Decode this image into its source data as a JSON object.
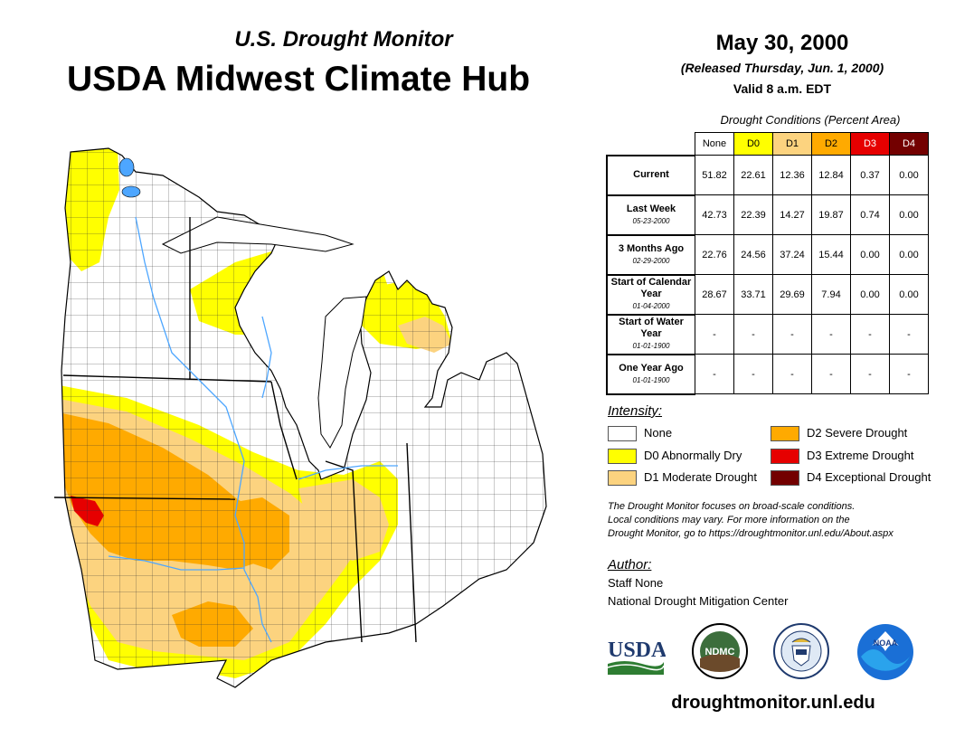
{
  "header": {
    "subtitle": "U.S. Drought Monitor",
    "title": "USDA Midwest Climate Hub",
    "date": "May 30, 2000",
    "released": "(Released Thursday, Jun. 1, 2000)",
    "valid": "Valid 8 a.m. EDT"
  },
  "conditions": {
    "caption": "Drought Conditions (Percent Area)",
    "columns": [
      {
        "label": "None",
        "color": "#ffffff",
        "text_color": "#000000"
      },
      {
        "label": "D0",
        "color": "#ffff00",
        "text_color": "#000000"
      },
      {
        "label": "D1",
        "color": "#fcd37f",
        "text_color": "#000000"
      },
      {
        "label": "D2",
        "color": "#ffaa00",
        "text_color": "#000000"
      },
      {
        "label": "D3",
        "color": "#e60000",
        "text_color": "#ffffff"
      },
      {
        "label": "D4",
        "color": "#730000",
        "text_color": "#ffffff"
      }
    ],
    "rows": [
      {
        "label": "Current",
        "sublabel": "",
        "values": [
          "51.82",
          "22.61",
          "12.36",
          "12.84",
          "0.37",
          "0.00"
        ]
      },
      {
        "label": "Last Week",
        "sublabel": "05-23-2000",
        "values": [
          "42.73",
          "22.39",
          "14.27",
          "19.87",
          "0.74",
          "0.00"
        ]
      },
      {
        "label": "3 Months Ago",
        "sublabel": "02-29-2000",
        "values": [
          "22.76",
          "24.56",
          "37.24",
          "15.44",
          "0.00",
          "0.00"
        ]
      },
      {
        "label": "Start of Calendar Year",
        "sublabel": "01-04-2000",
        "values": [
          "28.67",
          "33.71",
          "29.69",
          "7.94",
          "0.00",
          "0.00"
        ]
      },
      {
        "label": "Start of Water Year",
        "sublabel": "01-01-1900",
        "values": [
          "-",
          "-",
          "-",
          "-",
          "-",
          "-"
        ]
      },
      {
        "label": "One Year Ago",
        "sublabel": "01-01-1900",
        "values": [
          "-",
          "-",
          "-",
          "-",
          "-",
          "-"
        ]
      }
    ]
  },
  "legend": {
    "title": "Intensity:",
    "items": [
      {
        "label": "None",
        "color": "#ffffff"
      },
      {
        "label": "D0 Abnormally Dry",
        "color": "#ffff00"
      },
      {
        "label": "D1 Moderate Drought",
        "color": "#fcd37f"
      },
      {
        "label": "D2 Severe Drought",
        "color": "#ffaa00"
      },
      {
        "label": "D3 Extreme Drought",
        "color": "#e60000"
      },
      {
        "label": "D4 Exceptional Drought",
        "color": "#730000"
      }
    ]
  },
  "note": {
    "line1": "The Drought Monitor focuses on broad-scale conditions.",
    "line2": "Local conditions may vary. For more information on the",
    "line3": "Drought Monitor, go to https://droughtmonitor.unl.edu/About.aspx"
  },
  "author": {
    "title": "Author:",
    "name": "Staff None",
    "org": "National Drought Mitigation Center"
  },
  "logos": {
    "usda": "USDA",
    "ndmc": "NDMC",
    "noaa": "NOAA"
  },
  "website": "droughtmonitor.unl.edu",
  "map_colors": {
    "none": "#ffffff",
    "d0": "#ffff00",
    "d1": "#fcd37f",
    "d2": "#ffaa00",
    "d3": "#e60000",
    "water": "#4da6ff",
    "border": "#000000"
  }
}
